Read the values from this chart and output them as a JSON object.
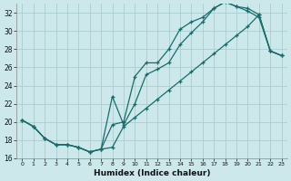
{
  "xlabel": "Humidex (Indice chaleur)",
  "bg_color": "#cce8eb",
  "grid_color": "#aacdd2",
  "line_color": "#1a6b6b",
  "xlim": [
    -0.5,
    23.5
  ],
  "ylim": [
    16,
    33
  ],
  "xticks": [
    0,
    1,
    2,
    3,
    4,
    5,
    6,
    7,
    8,
    9,
    10,
    11,
    12,
    13,
    14,
    15,
    16,
    17,
    18,
    19,
    20,
    21,
    22,
    23
  ],
  "yticks": [
    16,
    18,
    20,
    22,
    24,
    26,
    28,
    30,
    32
  ],
  "line1_x": [
    0,
    1,
    2,
    3,
    4,
    5,
    6,
    7,
    8,
    9,
    10,
    11,
    12,
    13,
    14,
    15,
    16,
    17,
    18,
    19,
    20,
    21,
    22,
    23
  ],
  "line1_y": [
    20.2,
    19.5,
    18.2,
    17.5,
    17.5,
    17.2,
    16.7,
    17.0,
    19.7,
    20.0,
    25.0,
    26.5,
    26.5,
    28.0,
    30.2,
    31.0,
    31.5,
    32.5,
    33.2,
    32.7,
    32.2,
    31.5,
    27.8,
    27.3
  ],
  "line2_x": [
    0,
    1,
    2,
    3,
    4,
    5,
    6,
    7,
    8,
    9,
    10,
    11,
    12,
    13,
    14,
    15,
    16,
    17,
    18,
    19,
    20,
    21,
    22,
    23
  ],
  "line2_y": [
    20.2,
    19.5,
    18.2,
    17.5,
    17.5,
    17.2,
    16.7,
    17.0,
    22.8,
    19.7,
    22.0,
    25.2,
    25.8,
    26.5,
    28.5,
    29.8,
    31.0,
    32.5,
    33.2,
    32.7,
    32.5,
    31.8,
    27.8,
    27.3
  ],
  "line3_x": [
    0,
    1,
    2,
    3,
    4,
    5,
    6,
    7,
    8,
    9,
    10,
    11,
    12,
    13,
    14,
    15,
    16,
    17,
    18,
    19,
    20,
    21,
    22,
    23
  ],
  "line3_y": [
    20.2,
    19.5,
    18.2,
    17.5,
    17.5,
    17.2,
    16.7,
    17.0,
    17.2,
    19.5,
    20.5,
    21.5,
    22.5,
    23.5,
    24.5,
    25.5,
    26.5,
    27.5,
    28.5,
    29.5,
    30.5,
    31.8,
    27.8,
    27.3
  ]
}
